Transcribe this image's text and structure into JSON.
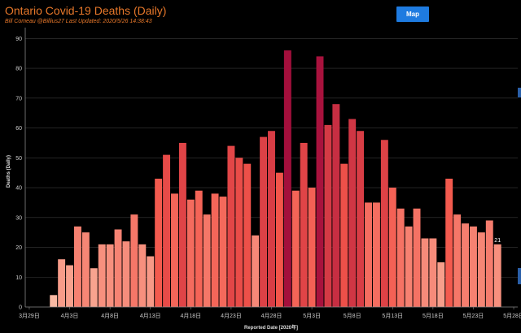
{
  "header": {
    "title": "Ontario Covid-19 Deaths (Daily)",
    "subtitle": "Bill Comeau @Billius27  Last Updated: 2020/5/26 14:38:43",
    "map_button_label": "Map"
  },
  "colors": {
    "background": "#000000",
    "title": "#e8782a",
    "button": "#1e7be0",
    "low": "#f9b9a3",
    "mid": "#f3554a",
    "high": "#a40f3c"
  },
  "chart_data": {
    "type": "bar",
    "title": "",
    "xlabel": "Reported Date [2020年]",
    "ylabel": "Deaths (Daily)",
    "ylim": [
      0,
      92
    ],
    "yticks": [
      0,
      10,
      20,
      30,
      40,
      50,
      60,
      70,
      80,
      90
    ],
    "grid": true,
    "x_start": "2020-03-29",
    "x_end": "2020-05-28",
    "x_tick_labels": [
      "3月29日",
      "4月3日",
      "4月8日",
      "4月13日",
      "4月18日",
      "4月23日",
      "4月28日",
      "5月3日",
      "5月8日",
      "5月13日",
      "5月18日",
      "5月23日",
      "5月28日"
    ],
    "x_tick_dates": [
      "2020-03-29",
      "2020-04-03",
      "2020-04-08",
      "2020-04-13",
      "2020-04-18",
      "2020-04-23",
      "2020-04-28",
      "2020-05-03",
      "2020-05-08",
      "2020-05-13",
      "2020-05-18",
      "2020-05-23",
      "2020-05-28"
    ],
    "dates": [
      "2020-04-01",
      "2020-04-02",
      "2020-04-03",
      "2020-04-04",
      "2020-04-05",
      "2020-04-06",
      "2020-04-07",
      "2020-04-08",
      "2020-04-09",
      "2020-04-10",
      "2020-04-11",
      "2020-04-12",
      "2020-04-13",
      "2020-04-14",
      "2020-04-15",
      "2020-04-16",
      "2020-04-17",
      "2020-04-18",
      "2020-04-19",
      "2020-04-20",
      "2020-04-21",
      "2020-04-22",
      "2020-04-23",
      "2020-04-24",
      "2020-04-25",
      "2020-04-26",
      "2020-04-27",
      "2020-04-28",
      "2020-04-29",
      "2020-04-30",
      "2020-05-01",
      "2020-05-02",
      "2020-05-03",
      "2020-05-04",
      "2020-05-05",
      "2020-05-06",
      "2020-05-07",
      "2020-05-08",
      "2020-05-09",
      "2020-05-10",
      "2020-05-11",
      "2020-05-12",
      "2020-05-13",
      "2020-05-14",
      "2020-05-15",
      "2020-05-16",
      "2020-05-17",
      "2020-05-18",
      "2020-05-19",
      "2020-05-20",
      "2020-05-21",
      "2020-05-22",
      "2020-05-23",
      "2020-05-24",
      "2020-05-25",
      "2020-05-26"
    ],
    "values": [
      4,
      16,
      14,
      27,
      25,
      13,
      21,
      21,
      26,
      22,
      31,
      21,
      17,
      43,
      51,
      38,
      55,
      36,
      39,
      31,
      38,
      37,
      54,
      50,
      48,
      24,
      57,
      59,
      45,
      86,
      39,
      55,
      40,
      84,
      61,
      68,
      48,
      63,
      59,
      35,
      35,
      56,
      40,
      33,
      27,
      33,
      23,
      23,
      15,
      43,
      31,
      28,
      27,
      25,
      29,
      21
    ],
    "data_labels": [
      {
        "date": "2020-05-26",
        "value": "21"
      }
    ]
  }
}
